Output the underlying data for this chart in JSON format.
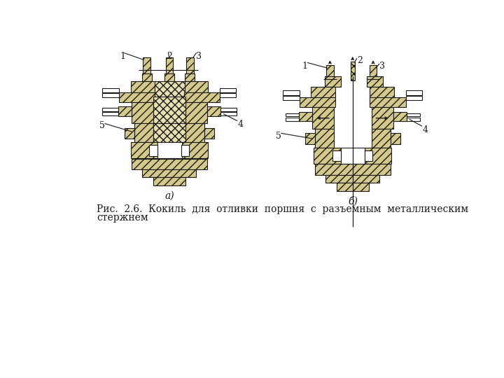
{
  "bg_color": "#ffffff",
  "line_color": "#1a1a1a",
  "fill_color": "#d4c98a",
  "fill_light": "#e8e0b0",
  "fill_white": "#ffffff",
  "caption_line1": "Рис.  2.6.  Кокиль  для  отливки  поршня  с  разъемным  металлическим",
  "caption_line2": "стержнем",
  "label_a": "а)",
  "label_b": "б)",
  "fig_width": 7.2,
  "fig_height": 5.4,
  "dpi": 100
}
